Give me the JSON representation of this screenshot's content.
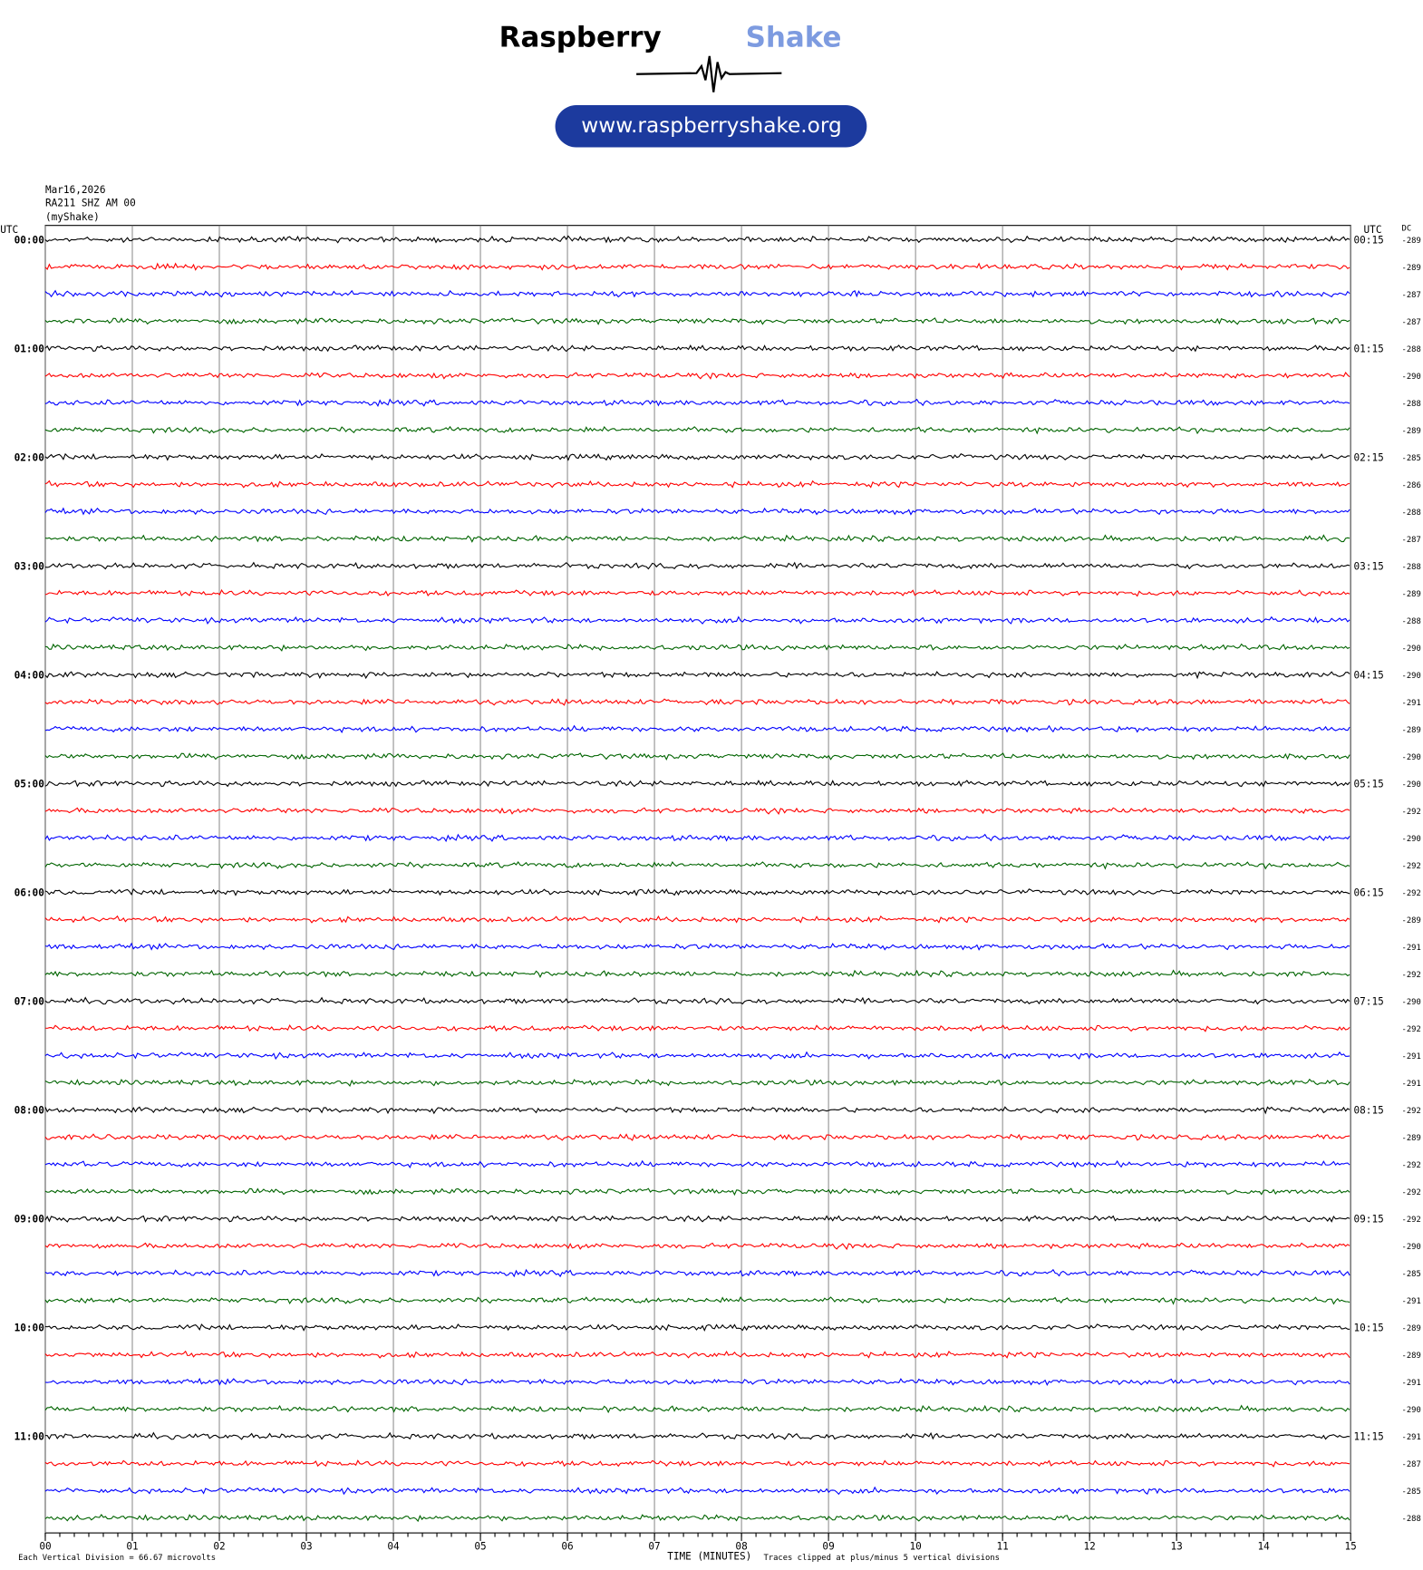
{
  "header": {
    "brand_left": "Raspberry",
    "brand_right": "Shake",
    "url": "www.raspberryshake.org"
  },
  "chart_data": {
    "type": "helicorder",
    "date": "Mar16,2026",
    "station": "RA211 SHZ AM 00",
    "source": "(myShake)",
    "left_axis_title": "UTC",
    "right_axis_title": "UTC",
    "dc_title": "DC",
    "left_labels": [
      "00:00",
      "01:00",
      "02:00",
      "03:00",
      "04:00",
      "05:00",
      "06:00",
      "07:00",
      "08:00",
      "09:00",
      "10:00",
      "11:00"
    ],
    "right_labels": [
      "00:15",
      "01:15",
      "02:15",
      "03:15",
      "04:15",
      "05:15",
      "06:15",
      "07:15",
      "08:15",
      "09:15",
      "10:15",
      "11:15"
    ],
    "dc_values": [
      -289,
      -289,
      -287,
      -287,
      -288,
      -290,
      -288,
      -289,
      -285,
      -286,
      -288,
      -287,
      -288,
      -289,
      -288,
      -290,
      -290,
      -291,
      -289,
      -290,
      -290,
      -292,
      -290,
      -292,
      -292,
      -289,
      -291,
      -292,
      -290,
      -292,
      -291,
      -291,
      -292,
      -289,
      -292,
      -292,
      -292,
      -290,
      -285,
      -291,
      -289,
      -289,
      -291,
      -290,
      -291,
      -287,
      -285,
      -288
    ],
    "trace_colors": [
      "#000000",
      "#ff0000",
      "#0000ff",
      "#006400"
    ],
    "xlim": [
      0,
      15
    ],
    "xticks": [
      {
        "value": 0,
        "label": "00"
      },
      {
        "value": 1,
        "label": "01"
      },
      {
        "value": 2,
        "label": "02"
      },
      {
        "value": 3,
        "label": "03"
      },
      {
        "value": 4,
        "label": "04"
      },
      {
        "value": 5,
        "label": "05"
      },
      {
        "value": 6,
        "label": "06"
      },
      {
        "value": 7,
        "label": "07"
      },
      {
        "value": 8,
        "label": "08"
      },
      {
        "value": 9,
        "label": "09"
      },
      {
        "value": 10,
        "label": "10"
      },
      {
        "value": 11,
        "label": "11"
      },
      {
        "value": 12,
        "label": "12"
      },
      {
        "value": 13,
        "label": "13"
      },
      {
        "value": 14,
        "label": "14"
      },
      {
        "value": 15,
        "label": "15"
      }
    ],
    "x_axis_label": "TIME (MINUTES)",
    "scale_note": "Each Vertical Division = 66.67 microvolts",
    "clip_note": "Traces clipped at plus/minus 5 vertical divisions",
    "grid": true
  }
}
